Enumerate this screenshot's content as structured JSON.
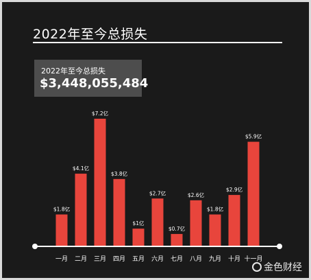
{
  "header": {
    "title": "2022年至今总损失"
  },
  "total": {
    "label": "2022年至今总损失",
    "value": "$3,448,055,484"
  },
  "chart_data": {
    "type": "bar",
    "categories": [
      "一月",
      "二月",
      "三月",
      "四月",
      "五月",
      "六月",
      "七月",
      "八月",
      "九月",
      "十月",
      "十一月"
    ],
    "values": [
      1.8,
      4.1,
      7.2,
      3.8,
      1,
      2.7,
      0.7,
      2.6,
      1.8,
      2.9,
      5.9
    ],
    "data_labels": [
      "$1.8亿",
      "$4.1亿",
      "$7.2亿",
      "$3.8亿",
      "$1亿",
      "$2.7亿",
      "$0.7亿",
      "$2.6亿",
      "$1.8亿",
      "$2.9亿",
      "$5.9亿"
    ],
    "ylim": [
      0,
      7.2
    ],
    "grid": false,
    "bar_color": "#e8453c",
    "axis_color": "#ffffff"
  },
  "watermark": {
    "text": "金色财经"
  }
}
